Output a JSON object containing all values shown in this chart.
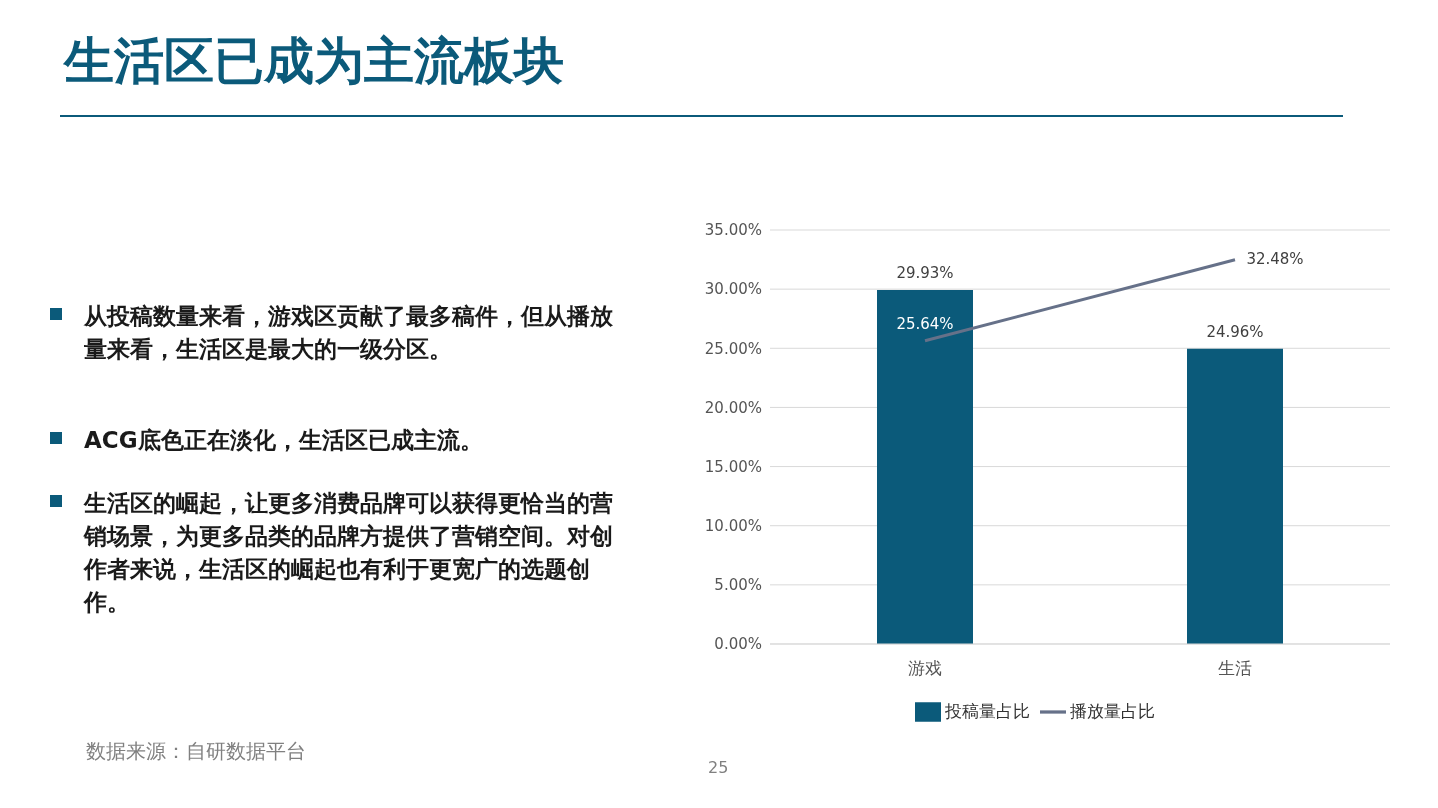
{
  "chart_data": {
    "type": "bar",
    "title": "生活区已成为主流板块",
    "annotations": [
      "从投稿数量来看，游戏区贡献了最多稿件，但从播放量来看，生活区是最大的一级分区。",
      "ACG底色正在淡化，生活区已成主流。",
      "生活区的崛起，让更多消费品牌可以获得更恰当的营销场景，为更多品类的品牌方提供了营销空间。对创作者来说，生活区的崛起也有利于更宽广的选题创作。",
      "数据来源：自研数据平台",
      "25"
    ],
    "categories": [
      "游戏",
      "生活"
    ],
    "series": [
      {
        "name": "投稿量占比",
        "color": "#0b5a7a",
        "values": [
          29.93,
          24.96
        ],
        "value_labels": [
          "29.93%",
          "24.96%"
        ]
      },
      {
        "name": "播放量占比",
        "type": "line",
        "color": "#667189",
        "values": [
          25.64,
          32.48
        ],
        "value_labels": [
          "25.64%",
          "32.48%"
        ]
      }
    ],
    "ylim": [
      0,
      35
    ],
    "yticks": [
      {
        "value": 0,
        "label": "0.00%"
      },
      {
        "value": 5,
        "label": "5.00%"
      },
      {
        "value": 10,
        "label": "10.00%"
      },
      {
        "value": 15,
        "label": "15.00%"
      },
      {
        "value": 20,
        "label": "20.00%"
      },
      {
        "value": 25,
        "label": "25.00%"
      },
      {
        "value": 30,
        "label": "30.00%"
      },
      {
        "value": 35,
        "label": "35.00%"
      }
    ],
    "grid": "y",
    "legend": "bottom",
    "marker": "none",
    "line_style": "solid"
  }
}
